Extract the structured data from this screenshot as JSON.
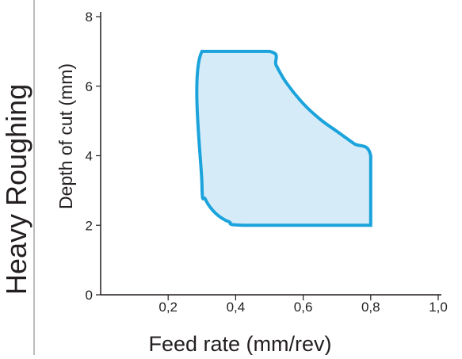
{
  "side_label": "Heavy Roughing",
  "chart_data": {
    "type": "area",
    "xlabel": "Feed rate (mm/rev)",
    "ylabel": "Depth of cut (mm)",
    "xlim": [
      0,
      1.0
    ],
    "ylim": [
      0,
      8
    ],
    "x_ticks": [
      {
        "value": 0.2,
        "label": "0,2"
      },
      {
        "value": 0.4,
        "label": "0,4"
      },
      {
        "value": 0.6,
        "label": "0,6"
      },
      {
        "value": 0.8,
        "label": "0,8"
      },
      {
        "value": 1.0,
        "label": "1,0"
      }
    ],
    "y_ticks": [
      {
        "value": 0,
        "label": "0"
      },
      {
        "value": 2,
        "label": "2"
      },
      {
        "value": 4,
        "label": "4"
      },
      {
        "value": 6,
        "label": "6"
      },
      {
        "value": 8,
        "label": "8"
      }
    ],
    "region_outline": [
      [
        0.3,
        7.0
      ],
      [
        0.5,
        7.0
      ],
      [
        0.52,
        6.6
      ],
      [
        0.55,
        6.1
      ],
      [
        0.6,
        5.5
      ],
      [
        0.65,
        5.05
      ],
      [
        0.7,
        4.7
      ],
      [
        0.75,
        4.35
      ],
      [
        0.8,
        4.0
      ],
      [
        0.8,
        2.0
      ],
      [
        0.43,
        2.0
      ],
      [
        0.38,
        2.1
      ],
      [
        0.34,
        2.35
      ],
      [
        0.31,
        2.75
      ],
      [
        0.3,
        3.2
      ]
    ],
    "colors": {
      "region_stroke": "#1ba3dc",
      "region_fill": "#d6ebf8",
      "axis": "#231f20",
      "divider": "#7a7a7a"
    },
    "grid": false,
    "legend": "none"
  }
}
